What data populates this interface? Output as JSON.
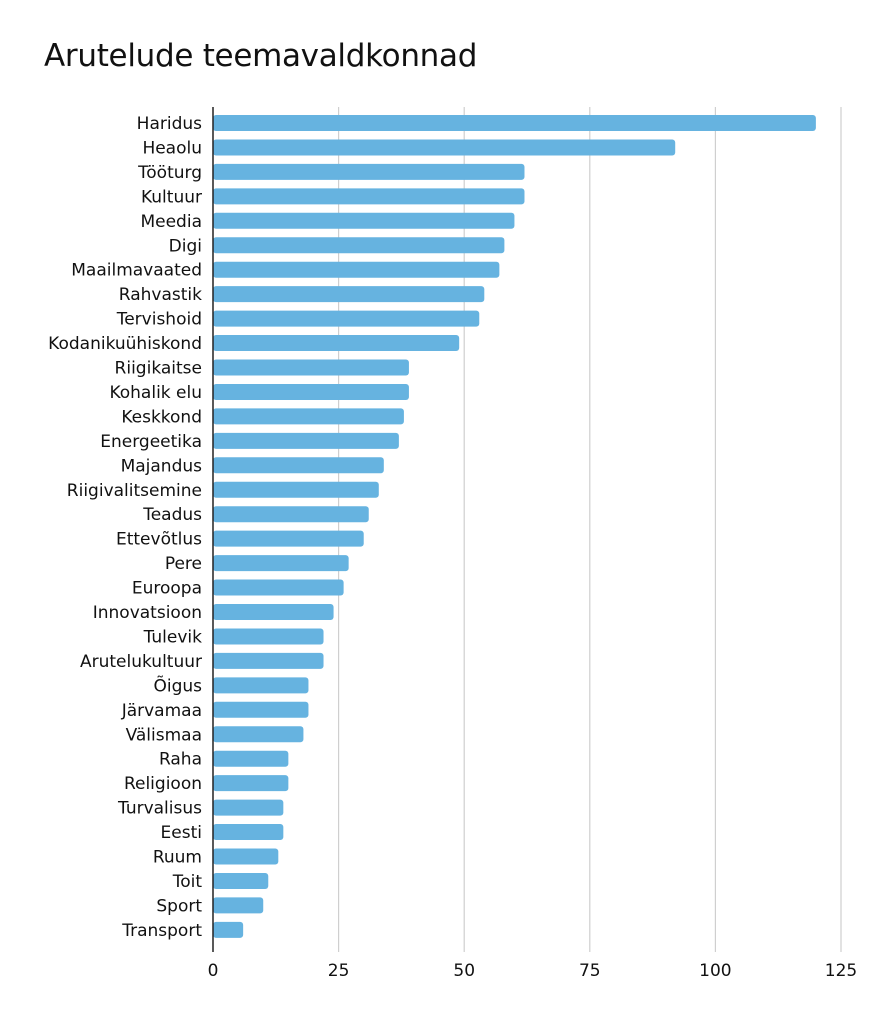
{
  "chart_data": {
    "type": "bar",
    "orientation": "horizontal",
    "title": "Arutelude teemavaldkonnad",
    "xlabel": "",
    "ylabel": "",
    "xlim": [
      0,
      125
    ],
    "ticks": [
      0,
      25,
      50,
      75,
      100,
      125
    ],
    "grid": true,
    "bar_color": "#66b3e0",
    "categories": [
      "Haridus",
      "Heaolu",
      "Tööturg",
      "Kultuur",
      "Meedia",
      "Digi",
      "Maailmavaated",
      "Rahvastik",
      "Tervishoid",
      "Kodanikuühiskond",
      "Riigikaitse",
      "Kohalik elu",
      "Keskkond",
      "Energeetika",
      "Majandus",
      "Riigivalitsemine",
      "Teadus",
      "Ettevõtlus",
      "Pere",
      "Euroopa",
      "Innovatsioon",
      "Tulevik",
      "Arutelukultuur",
      "Õigus",
      "Järvamaa",
      "Välismaa",
      "Raha",
      "Religioon",
      "Turvalisus",
      "Eesti",
      "Ruum",
      "Toit",
      "Sport",
      "Transport"
    ],
    "values": [
      120,
      92,
      62,
      62,
      60,
      58,
      57,
      54,
      53,
      49,
      39,
      39,
      38,
      37,
      34,
      33,
      31,
      30,
      27,
      26,
      24,
      22,
      22,
      19,
      19,
      18,
      15,
      15,
      14,
      14,
      13,
      11,
      10,
      6
    ]
  }
}
